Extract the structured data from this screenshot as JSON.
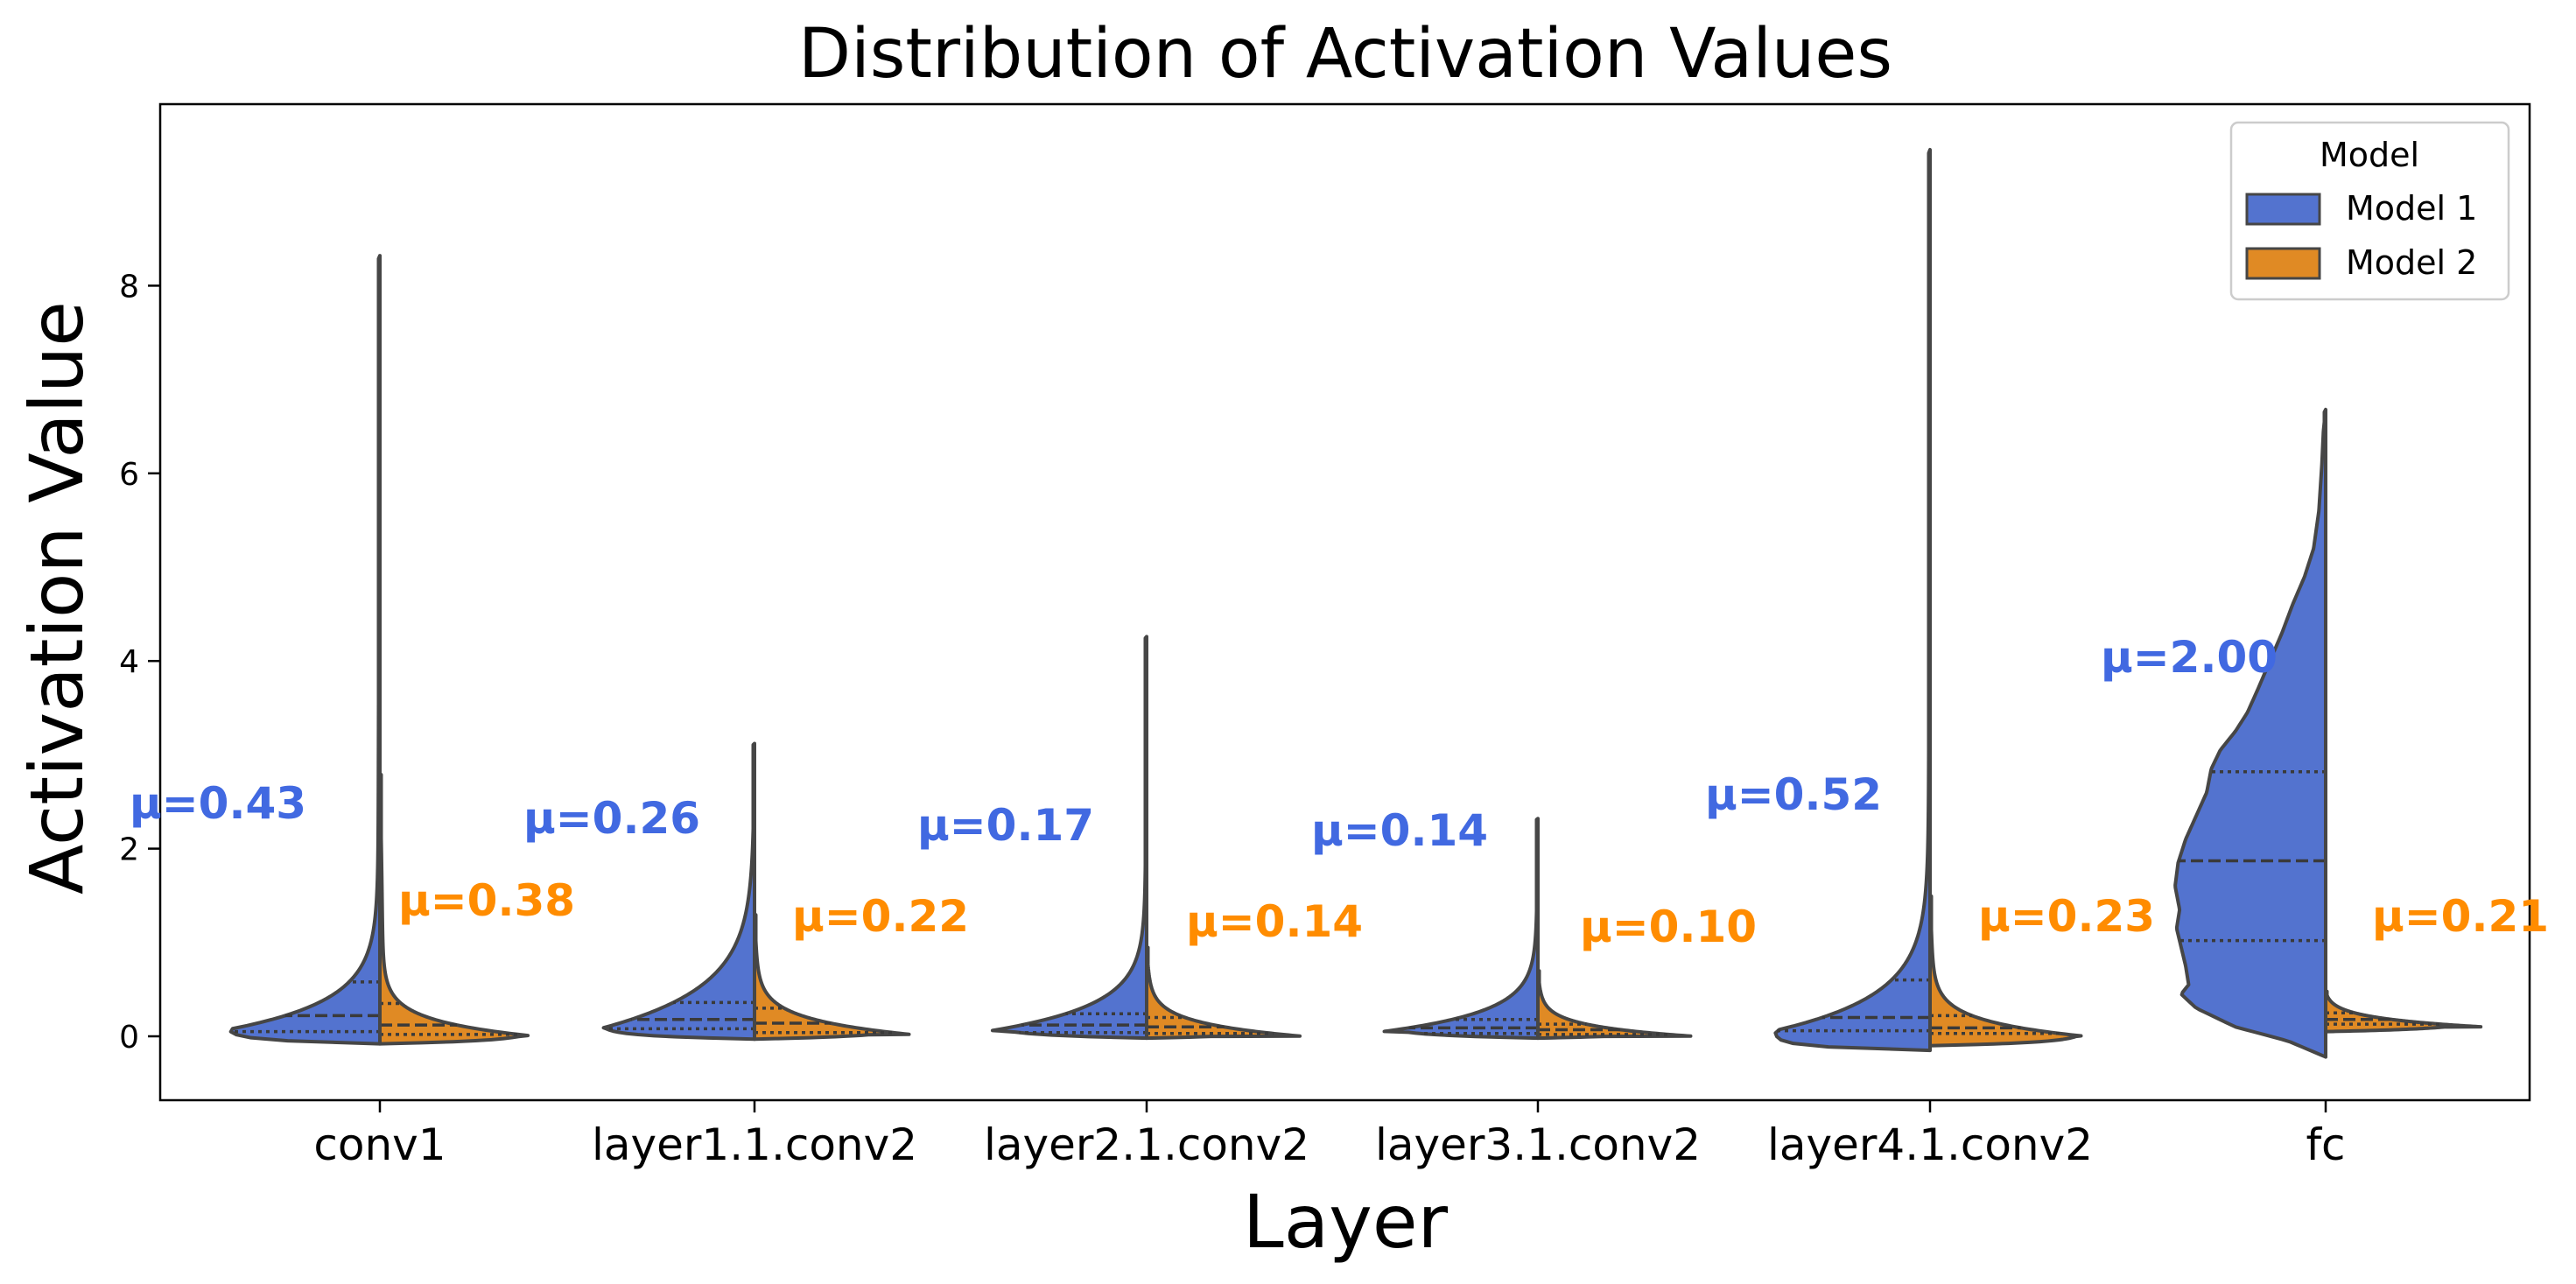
{
  "chart_data": {
    "type": "violin",
    "title": "Distribution of Activation Values",
    "xlabel": "Layer",
    "ylabel": "Activation Value",
    "ylim": [
      -0.7,
      9.95
    ],
    "yticks": [
      "0",
      "2",
      "4",
      "6",
      "8"
    ],
    "grid": false,
    "categories": [
      "conv1",
      "layer1.1.conv2",
      "layer2.1.conv2",
      "layer3.1.conv2",
      "layer4.1.conv2",
      "fc"
    ],
    "legend": {
      "title": "Model",
      "position": "top-right"
    },
    "series": [
      {
        "name": "Model 1",
        "color": "#4169e1",
        "fill": "#5373cf",
        "means": [
          0.43,
          0.26,
          0.17,
          0.14,
          0.52,
          2.0
        ],
        "mean_labels": [
          "μ=0.43",
          "μ=0.26",
          "μ=0.17",
          "μ=0.14",
          "μ=0.52",
          "μ=2.00"
        ],
        "min": [
          -0.08,
          -0.03,
          -0.02,
          -0.02,
          -0.15,
          -0.22
        ],
        "max": [
          8.32,
          3.12,
          4.26,
          2.32,
          9.45,
          6.68
        ],
        "quartiles": [
          [
            0.05,
            0.22,
            0.58
          ],
          [
            0.08,
            0.18,
            0.36
          ],
          [
            0.04,
            0.12,
            0.24
          ],
          [
            0.03,
            0.09,
            0.18
          ],
          [
            0.06,
            0.2,
            0.6
          ],
          [
            1.02,
            1.87,
            2.82
          ]
        ]
      },
      {
        "name": "Model 2",
        "color": "#ff8c00",
        "fill": "#e08a24",
        "means": [
          0.38,
          0.22,
          0.14,
          0.1,
          0.23,
          0.21
        ],
        "mean_labels": [
          "μ=0.38",
          "μ=0.22",
          "μ=0.14",
          "μ=0.10",
          "μ=0.23",
          "μ=0.21"
        ],
        "min": [
          -0.08,
          -0.03,
          -0.02,
          -0.02,
          -0.1,
          0.05
        ],
        "max": [
          2.8,
          1.3,
          0.95,
          0.7,
          1.5,
          0.48
        ],
        "quartiles": [
          [
            0.02,
            0.12,
            0.35
          ],
          [
            0.04,
            0.14,
            0.3
          ],
          [
            0.03,
            0.1,
            0.2
          ],
          [
            0.02,
            0.07,
            0.13
          ],
          [
            0.03,
            0.09,
            0.22
          ],
          [
            0.13,
            0.18,
            0.25
          ]
        ]
      }
    ]
  }
}
